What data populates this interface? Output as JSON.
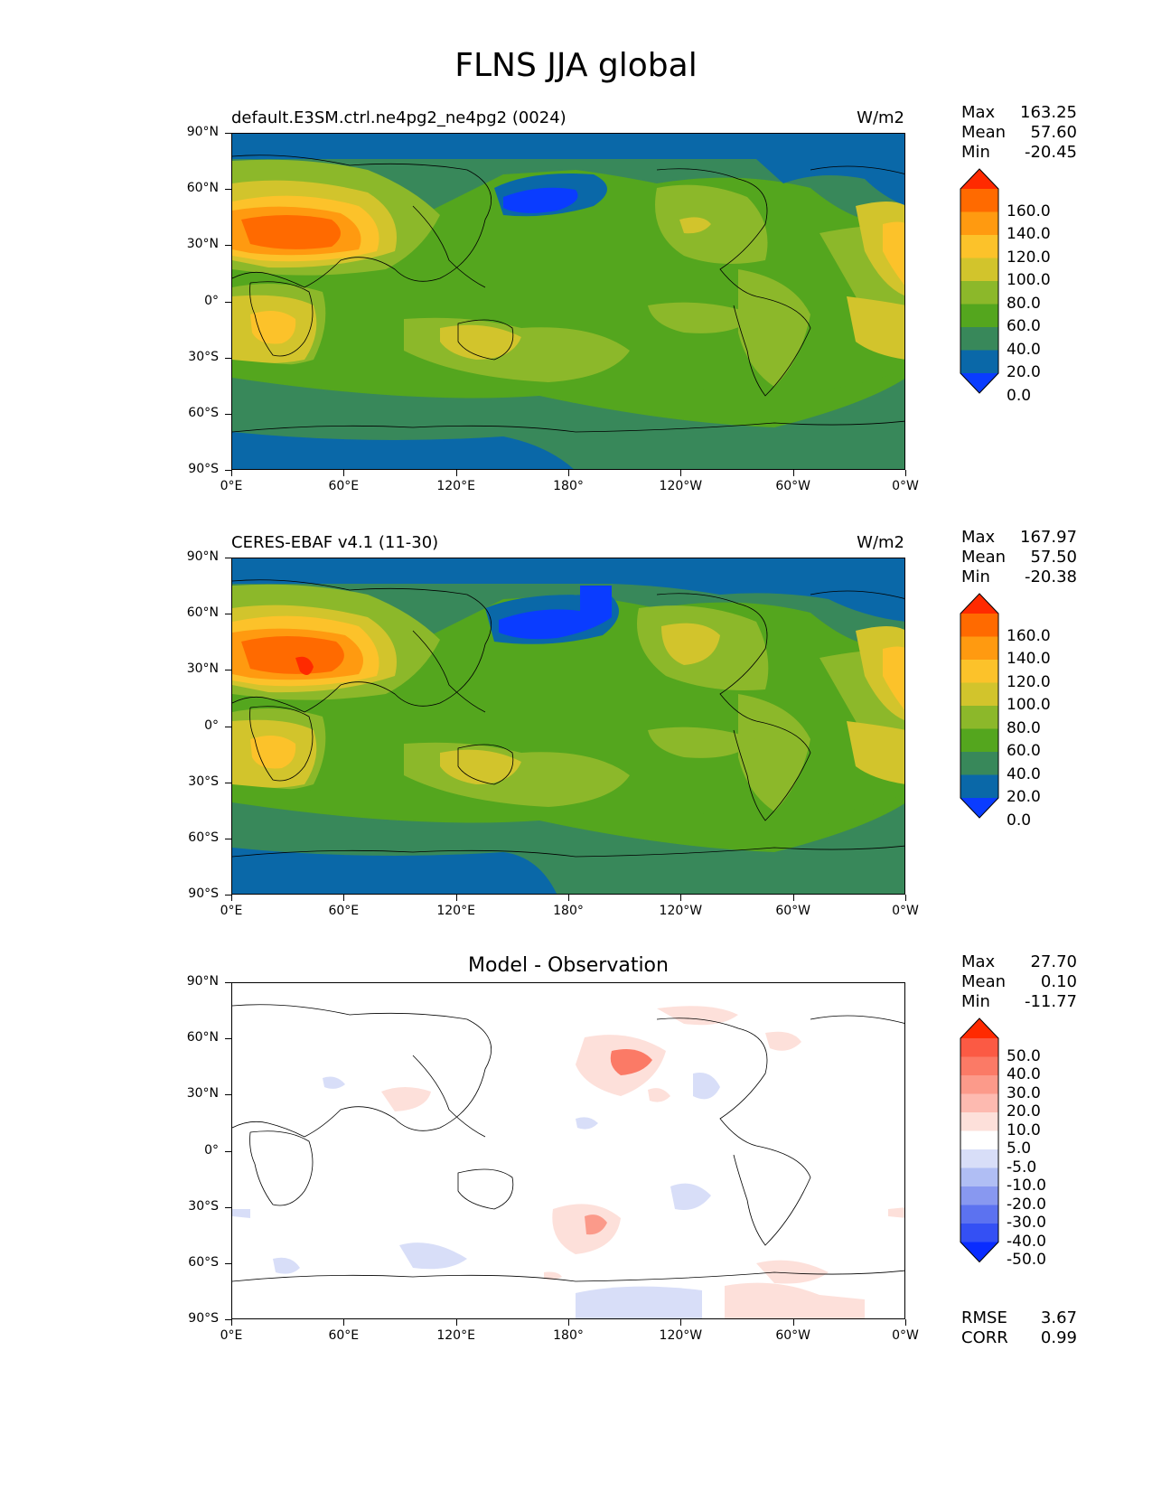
{
  "figure_title": "FLNS JJA global",
  "chart_data": [
    {
      "type": "heatmap",
      "title_left": "default.E3SM.ctrl.ne4pg2_ne4pg2 (0024)",
      "title_right": "W/m2",
      "stats": {
        "labels": [
          "Max",
          "Mean",
          "Min"
        ],
        "values": [
          "163.25",
          "57.60",
          "-20.45"
        ]
      },
      "colorbar": {
        "labels": [
          "160.0",
          "140.0",
          "120.0",
          "100.0",
          "80.0",
          "60.0",
          "40.0",
          "20.0",
          "0.0"
        ],
        "colors": [
          "#ff2a00",
          "#ff6a00",
          "#ff9a10",
          "#fcc22a",
          "#d2c42c",
          "#8cb82a",
          "#54a61e",
          "#38885a",
          "#0a68a8",
          "#0a3cff"
        ]
      },
      "y_ticks": [
        "90°N",
        "60°N",
        "30°N",
        "0°",
        "30°S",
        "60°S",
        "90°S"
      ],
      "x_ticks": [
        "0°E",
        "60°E",
        "120°E",
        "180°",
        "120°W",
        "60°W",
        "0°W"
      ]
    },
    {
      "type": "heatmap",
      "title_left": "CERES-EBAF v4.1 (11-30)",
      "title_right": "W/m2",
      "stats": {
        "labels": [
          "Max",
          "Mean",
          "Min"
        ],
        "values": [
          "167.97",
          "57.50",
          "-20.38"
        ]
      },
      "colorbar": {
        "labels": [
          "160.0",
          "140.0",
          "120.0",
          "100.0",
          "80.0",
          "60.0",
          "40.0",
          "20.0",
          "0.0"
        ],
        "colors": [
          "#ff2a00",
          "#ff6a00",
          "#ff9a10",
          "#fcc22a",
          "#d2c42c",
          "#8cb82a",
          "#54a61e",
          "#38885a",
          "#0a68a8",
          "#0a3cff"
        ]
      },
      "y_ticks": [
        "90°N",
        "60°N",
        "30°N",
        "0°",
        "30°S",
        "60°S",
        "90°S"
      ],
      "x_ticks": [
        "0°E",
        "60°E",
        "120°E",
        "180°",
        "120°W",
        "60°W",
        "0°W"
      ]
    },
    {
      "type": "heatmap",
      "title_center": "Model - Observation",
      "stats": {
        "labels": [
          "Max",
          "Mean",
          "Min"
        ],
        "values": [
          "27.70",
          "0.10",
          "-11.77"
        ]
      },
      "colorbar": {
        "labels": [
          "50.0",
          "40.0",
          "30.0",
          "20.0",
          "10.0",
          "5.0",
          "-5.0",
          "-10.0",
          "-20.0",
          "-30.0",
          "-40.0",
          "-50.0"
        ],
        "colors": [
          "#ff2a00",
          "#fb5a44",
          "#fb7a66",
          "#fc9a8a",
          "#fdbab0",
          "#fde0da",
          "#ffffff",
          "#d8def8",
          "#b0bef4",
          "#8898f0",
          "#5c72f0",
          "#3450f4",
          "#0a2cff"
        ]
      },
      "metrics": {
        "labels": [
          "RMSE",
          "CORR"
        ],
        "values": [
          "3.67",
          "0.99"
        ]
      },
      "y_ticks": [
        "90°N",
        "60°N",
        "30°N",
        "0°",
        "30°S",
        "60°S",
        "90°S"
      ],
      "x_ticks": [
        "0°E",
        "60°E",
        "120°E",
        "180°",
        "120°W",
        "60°W",
        "0°W"
      ]
    }
  ]
}
